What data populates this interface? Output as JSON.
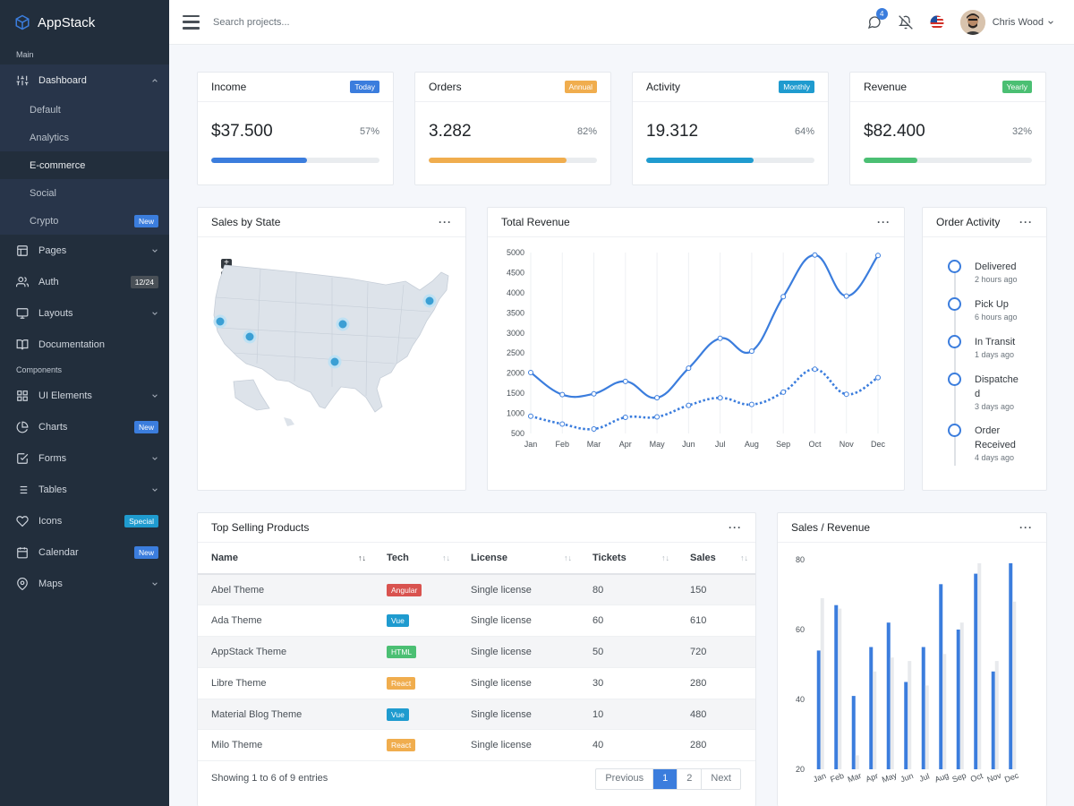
{
  "brand": {
    "name": "AppStack"
  },
  "sidebar": {
    "header_main": "Main",
    "dashboard": {
      "label": "Dashboard",
      "items": [
        {
          "label": "Default"
        },
        {
          "label": "Analytics"
        },
        {
          "label": "E-commerce"
        },
        {
          "label": "Social"
        },
        {
          "label": "Crypto",
          "badge": "New"
        }
      ]
    },
    "pages": "Pages",
    "auth": {
      "label": "Auth",
      "badge": "12/24"
    },
    "layouts": "Layouts",
    "documentation": "Documentation",
    "header_components": "Components",
    "ui_elements": "UI Elements",
    "charts": {
      "label": "Charts",
      "badge": "New"
    },
    "forms": "Forms",
    "tables": "Tables",
    "icons": {
      "label": "Icons",
      "badge": "Special"
    },
    "calendar": {
      "label": "Calendar",
      "badge": "New"
    },
    "maps": "Maps"
  },
  "topbar": {
    "search_placeholder": "Search projects...",
    "notifications_count": "4",
    "user_name": "Chris Wood"
  },
  "stats": [
    {
      "title": "Income",
      "badge": "Today",
      "value": "$37.500",
      "percent": "57%",
      "fill": 0.57,
      "color": "#3b7ddd",
      "badge_color": "#3b7ddd"
    },
    {
      "title": "Orders",
      "badge": "Annual",
      "value": "3.282",
      "percent": "82%",
      "fill": 0.82,
      "color": "#f0ad4e",
      "badge_color": "#f0ad4e"
    },
    {
      "title": "Activity",
      "badge": "Monthly",
      "value": "19.312",
      "percent": "64%",
      "fill": 0.64,
      "color": "#1f9bcf",
      "badge_color": "#1f9bcf"
    },
    {
      "title": "Revenue",
      "badge": "Yearly",
      "value": "$82.400",
      "percent": "32%",
      "fill": 0.32,
      "color": "#4bbf73",
      "badge_color": "#4bbf73"
    }
  ],
  "sales_by_state": {
    "title": "Sales by State"
  },
  "total_revenue": {
    "title": "Total Revenue"
  },
  "order_activity": {
    "title": "Order Activity",
    "items": [
      {
        "line1": "Delivered",
        "line2": "",
        "time": "2 hours ago"
      },
      {
        "line1": "Pick Up",
        "line2": "",
        "time": "6 hours ago"
      },
      {
        "line1": "In Transit",
        "line2": "",
        "time": "1 days ago"
      },
      {
        "line1": "Dispatche",
        "line2": "d",
        "time": "3 days ago"
      },
      {
        "line1": "Order",
        "line2": "Received",
        "time": "4 days ago"
      }
    ]
  },
  "top_selling": {
    "title": "Top Selling Products",
    "columns": [
      "Name",
      "Tech",
      "License",
      "Tickets",
      "Sales"
    ],
    "rows": [
      {
        "name": "Abel Theme",
        "tech": "Angular",
        "tech_color": "#d9534f",
        "license": "Single license",
        "tickets": "80",
        "sales": "150"
      },
      {
        "name": "Ada Theme",
        "tech": "Vue",
        "tech_color": "#1f9bcf",
        "license": "Single license",
        "tickets": "60",
        "sales": "610"
      },
      {
        "name": "AppStack Theme",
        "tech": "HTML",
        "tech_color": "#4bbf73",
        "license": "Single license",
        "tickets": "50",
        "sales": "720"
      },
      {
        "name": "Libre Theme",
        "tech": "React",
        "tech_color": "#f0ad4e",
        "license": "Single license",
        "tickets": "30",
        "sales": "280"
      },
      {
        "name": "Material Blog Theme",
        "tech": "Vue",
        "tech_color": "#1f9bcf",
        "license": "Single license",
        "tickets": "10",
        "sales": "480"
      },
      {
        "name": "Milo Theme",
        "tech": "React",
        "tech_color": "#f0ad4e",
        "license": "Single license",
        "tickets": "40",
        "sales": "280"
      }
    ],
    "showing": "Showing 1 to 6 of 9 entries",
    "pager": [
      "Previous",
      "1",
      "2",
      "Next"
    ]
  },
  "sales_revenue": {
    "title": "Sales / Revenue"
  },
  "chart_data": [
    {
      "type": "line",
      "title": "Total Revenue",
      "categories": [
        "Jan",
        "Feb",
        "Mar",
        "Apr",
        "May",
        "Jun",
        "Jul",
        "Aug",
        "Sep",
        "Oct",
        "Nov",
        "Dec"
      ],
      "yticks": [
        500,
        1000,
        1500,
        2000,
        2500,
        3000,
        3500,
        4000,
        4500,
        5000
      ],
      "ylim": [
        500,
        5000
      ],
      "series": [
        {
          "values": [
            2015,
            1465,
            1487,
            1796,
            1387,
            2123,
            2866,
            2548,
            3902,
            4938,
            3917,
            4927
          ],
          "style": "solid",
          "color": "#3b7ddd"
        },
        {
          "values": [
            928,
            734,
            612,
            901,
            911,
            1200,
            1385,
            1220,
            1528,
            2097,
            1476,
            1890
          ],
          "style": "dotted",
          "color": "#3b7ddd"
        }
      ]
    },
    {
      "type": "bar",
      "title": "Sales / Revenue",
      "categories": [
        "Jan",
        "Feb",
        "Mar",
        "Apr",
        "May",
        "Jun",
        "Jul",
        "Aug",
        "Sep",
        "Oct",
        "Nov",
        "Dec"
      ],
      "yticks": [
        20,
        40,
        60,
        80
      ],
      "ylim": [
        20,
        80
      ],
      "series": [
        {
          "values": [
            54,
            67,
            41,
            55,
            62,
            45,
            55,
            73,
            60,
            76,
            48,
            79
          ],
          "color": "#3b7ddd"
        },
        {
          "values": [
            69,
            66,
            24,
            48,
            52,
            51,
            44,
            53,
            62,
            79,
            51,
            68
          ],
          "color": "#e8eaed"
        }
      ]
    }
  ]
}
